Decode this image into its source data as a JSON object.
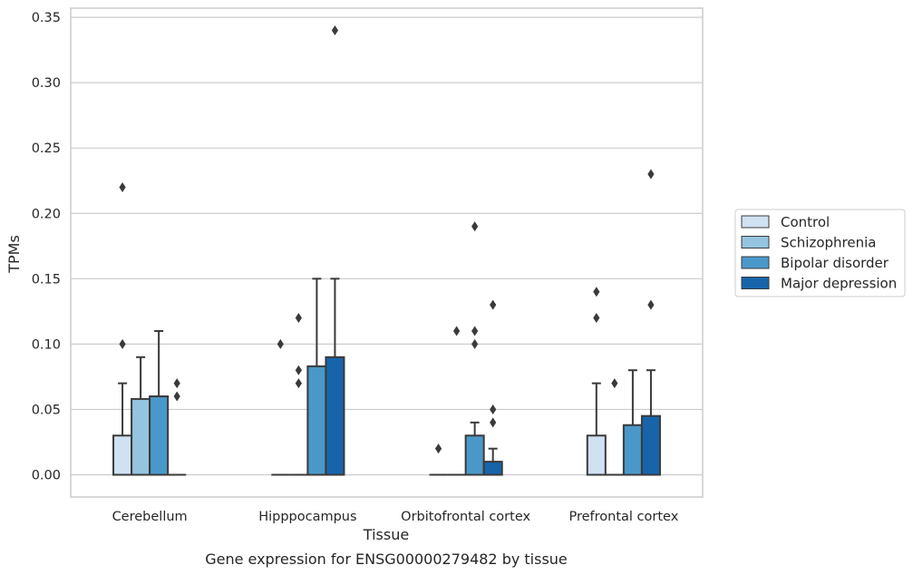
{
  "chart_data": {
    "type": "bar",
    "xlabel": "Tissue",
    "ylabel": "TPMs",
    "caption": "Gene expression for ENSG00000279482 by tissue",
    "ylim": [
      -0.017,
      0.357
    ],
    "yticks": [
      "0.00",
      "0.05",
      "0.10",
      "0.15",
      "0.20",
      "0.25",
      "0.30",
      "0.35"
    ],
    "grid": true,
    "legend_position": "right",
    "categories": [
      "Cerebellum",
      "Hipppocampus",
      "Orbitofrontal cortex",
      "Prefrontal cortex"
    ],
    "series": [
      {
        "name": "Control",
        "color": "#d0e1f2",
        "values": [
          0.03,
          0.0,
          0.0,
          0.03
        ],
        "whisker_high": [
          0.07,
          0.0,
          0.0,
          0.07
        ],
        "outliers": [
          [
            0.1,
            0.22
          ],
          [
            0.1
          ],
          [
            0.02
          ],
          [
            0.12,
            0.14
          ]
        ]
      },
      {
        "name": "Schizophrenia",
        "color": "#94c4df",
        "values": [
          0.058,
          0.0,
          0.0,
          0.0
        ],
        "whisker_high": [
          0.09,
          0.0,
          0.0,
          0.0
        ],
        "outliers": [
          [],
          [
            0.07,
            0.08,
            0.12
          ],
          [
            0.11
          ],
          [
            0.07
          ]
        ]
      },
      {
        "name": "Bipolar disorder",
        "color": "#4a98c9",
        "values": [
          0.06,
          0.083,
          0.03,
          0.038
        ],
        "whisker_high": [
          0.11,
          0.15,
          0.04,
          0.08
        ],
        "outliers": [
          [],
          [],
          [
            0.1,
            0.11,
            0.19
          ],
          []
        ]
      },
      {
        "name": "Major depression",
        "color": "#1764ab",
        "values": [
          0.0,
          0.09,
          0.01,
          0.045
        ],
        "whisker_high": [
          0.0,
          0.15,
          0.02,
          0.08
        ],
        "outliers": [
          [
            0.06,
            0.07
          ],
          [
            0.34
          ],
          [
            0.04,
            0.05,
            0.13
          ],
          [
            0.13,
            0.23
          ]
        ]
      }
    ]
  }
}
